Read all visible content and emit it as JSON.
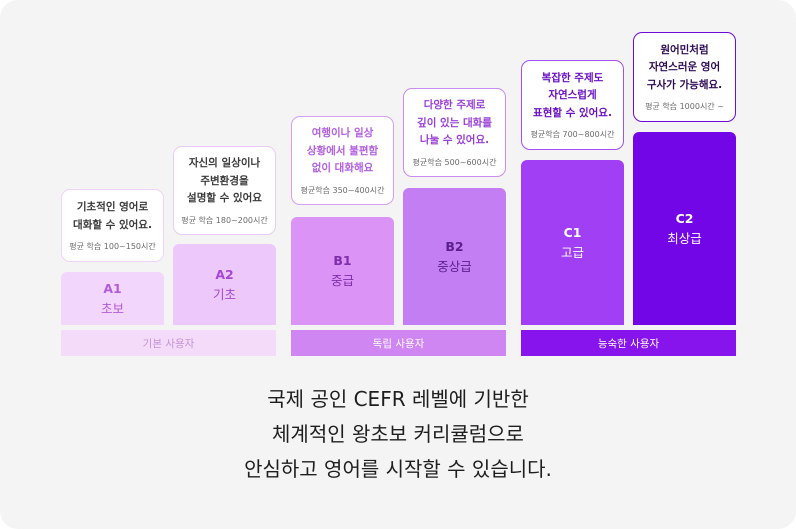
{
  "levels": [
    {
      "code": "A1",
      "name": "초보",
      "description": "기초적인 영어로\n대화할 수 있어요.",
      "hours": "평균 학습 100~150시간"
    },
    {
      "code": "A2",
      "name": "기초",
      "description": "자신의 일상이나\n주변환경을\n설명할 수 있어요",
      "hours": "평균 학습 180~200시간"
    },
    {
      "code": "B1",
      "name": "중급",
      "description": "여행이나 일상\n상황에서 불편함\n없이 대화해요",
      "hours": "평균학습 350~400시간"
    },
    {
      "code": "B2",
      "name": "중상급",
      "description": "다양한 주제로\n깊이 있는 대화를\n나눌 수 있어요.",
      "hours": "평균학습 500~600시간"
    },
    {
      "code": "C1",
      "name": "고급",
      "description": "복잡한 주제도\n자연스럽게\n표현할 수 있어요.",
      "hours": "평균학습 700~800시간"
    },
    {
      "code": "C2",
      "name": "최상급",
      "description": "원어민처럼\n자연스러운 영어\n구사가 가능해요.",
      "hours": "평균 학습 1000시간 ~"
    }
  ],
  "groups": [
    {
      "label": "기본 사용자"
    },
    {
      "label": "독립 사용자"
    },
    {
      "label": "능숙한 사용자"
    }
  ],
  "caption": {
    "line1": "국제 공인 CEFR 레벨에 기반한",
    "line2": "체계적인 왕초보 커리큘럼으로",
    "line3": "안심하고 영어를 시작할 수 있습니다."
  },
  "colors": {
    "A1": "#f3d6fb",
    "A2": "#ecc8fb",
    "B1": "#db93f6",
    "B2": "#c47ef3",
    "C1": "#a13ff5",
    "C2": "#7306e6",
    "group_basic": "#f3dbf9",
    "group_independent": "#cf86f2",
    "group_proficient": "#8714ec"
  }
}
